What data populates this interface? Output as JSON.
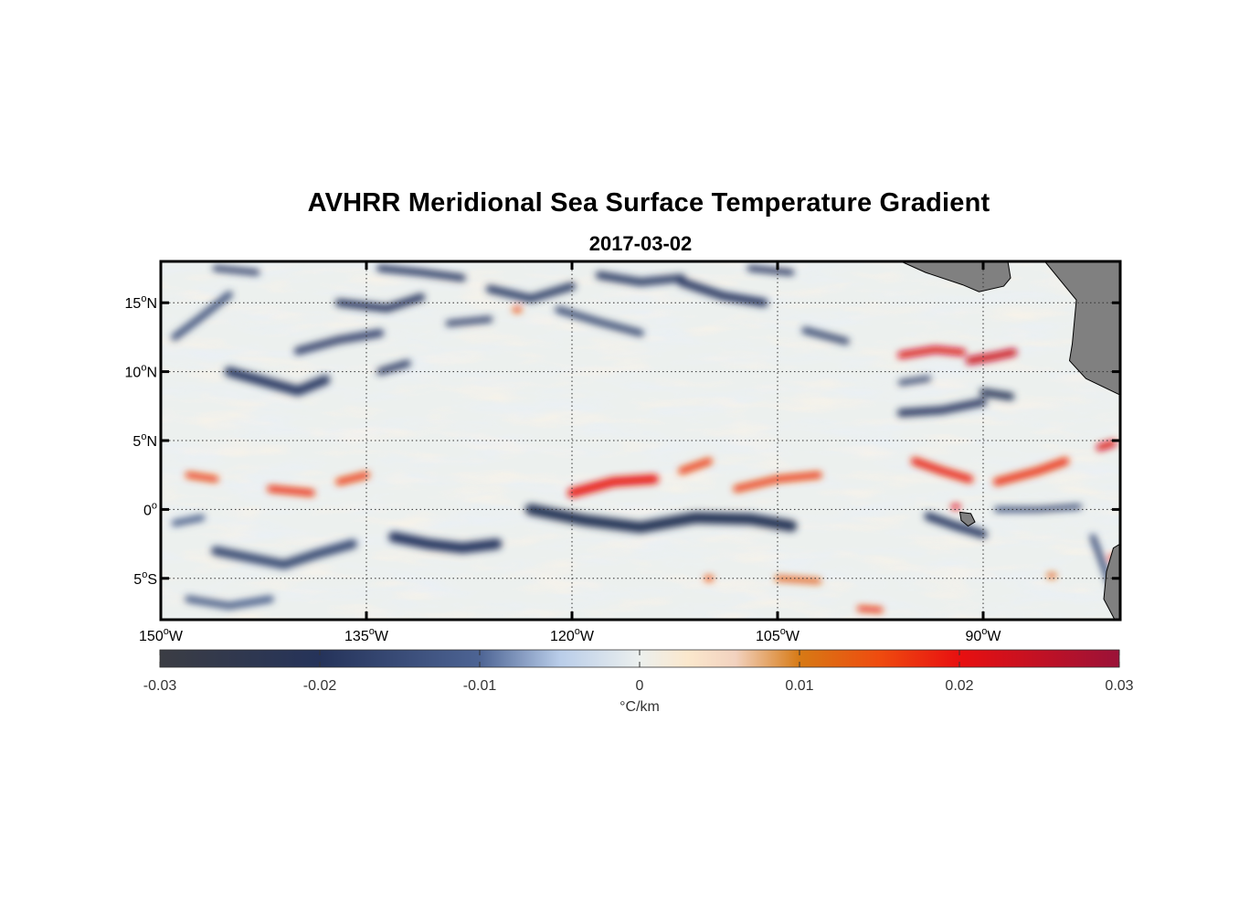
{
  "title": "AVHRR Meridional Sea Surface Temperature Gradient",
  "subtitle": "2017-03-02",
  "map": {
    "longitude_range_deg_east": [
      -150,
      -80
    ],
    "latitude_range_deg": [
      -8,
      18
    ],
    "lon_ticks": [
      {
        "value": -150,
        "label": "150",
        "hemi": "W"
      },
      {
        "value": -135,
        "label": "135",
        "hemi": "W"
      },
      {
        "value": -120,
        "label": "120",
        "hemi": "W"
      },
      {
        "value": -105,
        "label": "105",
        "hemi": "W"
      },
      {
        "value": -90,
        "label": "90",
        "hemi": "W"
      }
    ],
    "lat_ticks": [
      {
        "value": 15,
        "label": "15",
        "hemi": "N"
      },
      {
        "value": 10,
        "label": "10",
        "hemi": "N"
      },
      {
        "value": 5,
        "label": "5",
        "hemi": "N"
      },
      {
        "value": 0,
        "label": "0",
        "hemi": ""
      },
      {
        "value": -5,
        "label": "5",
        "hemi": "S"
      }
    ],
    "grid": "dotted",
    "land_color": "#808080",
    "features": [
      {
        "sign": "neg",
        "strength": 0.85,
        "path": [
          [
            -145,
            10
          ],
          [
            -142.5,
            9.3
          ],
          [
            -140,
            8.6
          ],
          [
            -138,
            9.4
          ]
        ],
        "width": 1.3
      },
      {
        "sign": "neg",
        "strength": 0.8,
        "path": [
          [
            -140,
            11.5
          ],
          [
            -137,
            12.3
          ],
          [
            -134,
            12.8
          ]
        ],
        "width": 1.0
      },
      {
        "sign": "neg",
        "strength": 0.85,
        "path": [
          [
            -134,
            10
          ],
          [
            -132,
            10.6
          ]
        ],
        "width": 0.9
      },
      {
        "sign": "neg",
        "strength": 0.7,
        "path": [
          [
            -149,
            12.5
          ],
          [
            -147,
            14
          ],
          [
            -145,
            15.6
          ]
        ],
        "width": 0.9
      },
      {
        "sign": "neg",
        "strength": 0.9,
        "path": [
          [
            -137,
            15
          ],
          [
            -133.5,
            14.6
          ],
          [
            -131,
            15.4
          ]
        ],
        "width": 1.0
      },
      {
        "sign": "neg",
        "strength": 0.8,
        "path": [
          [
            -146,
            17.5
          ],
          [
            -143,
            17.2
          ]
        ],
        "width": 0.8
      },
      {
        "sign": "neg",
        "strength": 0.9,
        "path": [
          [
            -134,
            17.5
          ],
          [
            -131,
            17.2
          ],
          [
            -128,
            16.8
          ]
        ],
        "width": 0.9
      },
      {
        "sign": "neg",
        "strength": 0.85,
        "path": [
          [
            -126,
            16
          ],
          [
            -123,
            15.3
          ],
          [
            -120,
            16.2
          ]
        ],
        "width": 1.0
      },
      {
        "sign": "neg",
        "strength": 0.8,
        "path": [
          [
            -129,
            13.5
          ],
          [
            -126,
            13.8
          ]
        ],
        "width": 0.8
      },
      {
        "sign": "neg",
        "strength": 0.75,
        "path": [
          [
            -121,
            14.5
          ],
          [
            -118,
            13.6
          ],
          [
            -115,
            12.8
          ]
        ],
        "width": 0.9
      },
      {
        "sign": "neg",
        "strength": 0.85,
        "path": [
          [
            -118,
            17
          ],
          [
            -115,
            16.5
          ],
          [
            -112,
            16.8
          ]
        ],
        "width": 1.0
      },
      {
        "sign": "neg",
        "strength": 0.9,
        "path": [
          [
            -112,
            16.5
          ],
          [
            -109,
            15.5
          ],
          [
            -106,
            15
          ]
        ],
        "width": 1.1
      },
      {
        "sign": "neg",
        "strength": 0.9,
        "path": [
          [
            -107,
            17.5
          ],
          [
            -104,
            17.2
          ]
        ],
        "width": 0.8
      },
      {
        "sign": "neg",
        "strength": 0.75,
        "path": [
          [
            -103,
            13
          ],
          [
            -100,
            12.2
          ]
        ],
        "width": 0.9
      },
      {
        "sign": "neg",
        "strength": 0.9,
        "path": [
          [
            -96,
            7
          ],
          [
            -93,
            7.2
          ],
          [
            -90,
            7.8
          ]
        ],
        "width": 1.0
      },
      {
        "sign": "neg",
        "strength": 1.0,
        "path": [
          [
            -90,
            8.5
          ],
          [
            -88,
            8.2
          ]
        ],
        "width": 1.0
      },
      {
        "sign": "neg",
        "strength": 0.8,
        "path": [
          [
            -96,
            9.2
          ],
          [
            -94,
            9.5
          ]
        ],
        "width": 0.7
      },
      {
        "sign": "neg",
        "strength": 1.0,
        "path": [
          [
            -123,
            0
          ],
          [
            -119,
            -0.8
          ],
          [
            -115,
            -1.3
          ],
          [
            -111,
            -0.6
          ],
          [
            -107,
            -0.7
          ],
          [
            -104,
            -1.2
          ]
        ],
        "width": 1.5
      },
      {
        "sign": "neg",
        "strength": 0.9,
        "path": [
          [
            -133,
            -2
          ],
          [
            -130.5,
            -2.5
          ],
          [
            -128,
            -2.8
          ],
          [
            -125.5,
            -2.5
          ]
        ],
        "width": 1.4
      },
      {
        "sign": "neg",
        "strength": 0.75,
        "path": [
          [
            -146,
            -3
          ],
          [
            -143.5,
            -3.5
          ],
          [
            -141,
            -4
          ],
          [
            -138.5,
            -3.2
          ],
          [
            -136,
            -2.5
          ]
        ],
        "width": 1.2
      },
      {
        "sign": "neg",
        "strength": 0.6,
        "path": [
          [
            -148,
            -6.5
          ],
          [
            -145,
            -7
          ],
          [
            -142,
            -6.5
          ]
        ],
        "width": 0.9
      },
      {
        "sign": "neg",
        "strength": 0.85,
        "path": [
          [
            -94,
            -0.5
          ],
          [
            -92,
            -1.2
          ],
          [
            -90,
            -1.8
          ]
        ],
        "width": 1.1
      },
      {
        "sign": "neg",
        "strength": 0.7,
        "path": [
          [
            -89,
            0
          ],
          [
            -86,
            0
          ],
          [
            -83,
            0.2
          ]
        ],
        "width": 0.7
      },
      {
        "sign": "neg",
        "strength": 0.7,
        "path": [
          [
            -82,
            -2
          ],
          [
            -80.5,
            -6
          ]
        ],
        "width": 0.8
      },
      {
        "sign": "neg",
        "strength": 0.6,
        "path": [
          [
            -149,
            -1
          ],
          [
            -147,
            -0.6
          ]
        ],
        "width": 0.8
      },
      {
        "sign": "pos",
        "strength": 0.75,
        "path": [
          [
            -148,
            2.5
          ],
          [
            -146,
            2.2
          ]
        ],
        "width": 0.8
      },
      {
        "sign": "pos",
        "strength": 0.8,
        "path": [
          [
            -142,
            1.5
          ],
          [
            -139,
            1.2
          ]
        ],
        "width": 0.9
      },
      {
        "sign": "pos",
        "strength": 0.75,
        "path": [
          [
            -137,
            2
          ],
          [
            -135,
            2.5
          ]
        ],
        "width": 0.9
      },
      {
        "sign": "pos",
        "strength": 0.9,
        "path": [
          [
            -120,
            1.2
          ],
          [
            -117,
            2
          ],
          [
            -114,
            2.2
          ]
        ],
        "width": 1.2
      },
      {
        "sign": "pos",
        "strength": 0.75,
        "path": [
          [
            -112,
            2.8
          ],
          [
            -110,
            3.5
          ]
        ],
        "width": 0.9
      },
      {
        "sign": "pos",
        "strength": 0.75,
        "path": [
          [
            -108,
            1.5
          ],
          [
            -105,
            2.2
          ],
          [
            -102,
            2.5
          ]
        ],
        "width": 0.9
      },
      {
        "sign": "pos",
        "strength": 0.85,
        "path": [
          [
            -95,
            3.5
          ],
          [
            -93,
            2.8
          ],
          [
            -91,
            2.2
          ]
        ],
        "width": 1.0
      },
      {
        "sign": "pos",
        "strength": 0.8,
        "path": [
          [
            -89,
            2
          ],
          [
            -86,
            2.8
          ],
          [
            -84,
            3.5
          ]
        ],
        "width": 1.0
      },
      {
        "sign": "pos",
        "strength": 1.0,
        "path": [
          [
            -81.5,
            4.5
          ],
          [
            -80.5,
            4.8
          ]
        ],
        "width": 0.9
      },
      {
        "sign": "pos",
        "strength": 1.0,
        "path": [
          [
            -96,
            11.2
          ],
          [
            -93.5,
            11.6
          ],
          [
            -91.5,
            11.4
          ]
        ],
        "width": 0.9
      },
      {
        "sign": "pos",
        "strength": 1.1,
        "path": [
          [
            -91,
            10.8
          ],
          [
            -89.2,
            11.1
          ],
          [
            -87.8,
            11.4
          ]
        ],
        "width": 1.0
      },
      {
        "sign": "pos",
        "strength": 0.95,
        "path": [
          [
            -92,
            0.2
          ]
        ],
        "width": 0.6
      },
      {
        "sign": "pos",
        "strength": 0.7,
        "path": [
          [
            -124,
            14.5
          ]
        ],
        "width": 0.7
      },
      {
        "sign": "pos",
        "strength": 0.8,
        "path": [
          [
            -99,
            -7.2
          ],
          [
            -97.5,
            -7.3
          ]
        ],
        "width": 0.6
      },
      {
        "sign": "pos",
        "strength": 0.6,
        "path": [
          [
            -105,
            -5
          ],
          [
            -102,
            -5.2
          ]
        ],
        "width": 0.6
      },
      {
        "sign": "pos",
        "strength": 0.7,
        "path": [
          [
            -110,
            -5
          ]
        ],
        "width": 0.5
      },
      {
        "sign": "pos",
        "strength": 0.6,
        "path": [
          [
            -85,
            -4.8
          ]
        ],
        "width": 0.5
      },
      {
        "sign": "pos",
        "strength": 0.8,
        "path": [
          [
            -80.5,
            -3.5
          ]
        ],
        "width": 0.5
      }
    ],
    "land": [
      [
        [
          -96,
          18
        ],
        [
          -94.2,
          17.2
        ],
        [
          -91.5,
          16.3
        ],
        [
          -90.3,
          15.8
        ],
        [
          -88.5,
          16.2
        ],
        [
          -88,
          16.8
        ],
        [
          -88.2,
          18
        ],
        [
          -85.5,
          18
        ],
        [
          -83.2,
          15.2
        ],
        [
          -83.5,
          12
        ],
        [
          -83.7,
          10.8
        ],
        [
          -82.5,
          9.5
        ],
        [
          -80,
          8.3
        ],
        [
          -80,
          18
        ]
      ],
      [
        [
          -80,
          -2.5
        ],
        [
          -80.5,
          -2.8
        ],
        [
          -81,
          -4.5
        ],
        [
          -81.2,
          -6.5
        ],
        [
          -80.4,
          -8
        ],
        [
          -80,
          -8
        ]
      ],
      [
        [
          -91.7,
          -0.2
        ],
        [
          -90.9,
          -0.3
        ],
        [
          -90.6,
          -0.9
        ],
        [
          -91.1,
          -1.2
        ],
        [
          -91.6,
          -0.8
        ]
      ]
    ]
  },
  "colorbar": {
    "range": [
      -0.03,
      0.03
    ],
    "ticks": [
      "-0.03",
      "-0.02",
      "-0.01",
      "0",
      "0.01",
      "0.02",
      "0.03"
    ],
    "label": "°C/km",
    "stops": [
      {
        "v": -0.03,
        "c": "#3b3d44"
      },
      {
        "v": -0.02,
        "c": "#25335a"
      },
      {
        "v": -0.01,
        "c": "#4d6494"
      },
      {
        "v": -0.005,
        "c": "#b9cde9"
      },
      {
        "v": 0,
        "c": "#ecf0ee"
      },
      {
        "v": 0.003,
        "c": "#fbe8cd"
      },
      {
        "v": 0.006,
        "c": "#f2d2bf"
      },
      {
        "v": 0.01,
        "c": "#d77a15"
      },
      {
        "v": 0.015,
        "c": "#ef4b0f"
      },
      {
        "v": 0.02,
        "c": "#e81010"
      },
      {
        "v": 0.03,
        "c": "#9b1238"
      }
    ]
  }
}
